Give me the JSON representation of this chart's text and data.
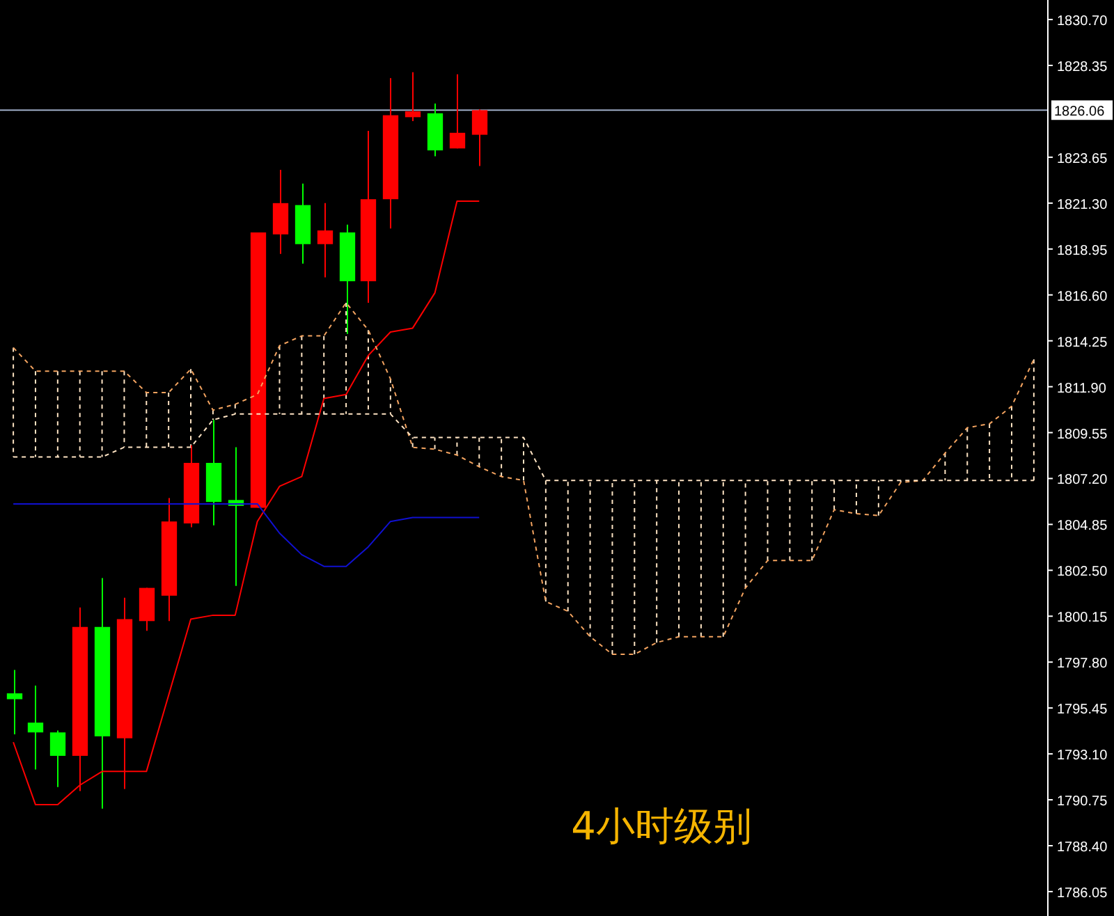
{
  "chart_data": {
    "type": "candlestick",
    "title": "4小时级别",
    "categories": [
      null,
      null,
      null,
      null,
      null,
      null,
      null,
      null,
      null,
      null,
      null,
      null,
      null,
      null,
      null,
      null,
      null,
      null,
      null,
      null,
      null,
      null,
      null,
      null,
      null,
      null,
      null,
      null,
      null,
      null,
      null,
      null,
      null,
      null,
      null,
      null,
      null,
      null,
      null,
      null,
      null,
      null,
      null,
      null,
      null,
      null,
      null
    ],
    "ohlc": [
      [
        1796.2,
        1797.4,
        1794.1,
        1795.9
      ],
      [
        1794.7,
        1796.6,
        1792.3,
        1794.2
      ],
      [
        1794.2,
        1794.3,
        1791.4,
        1793.0
      ],
      [
        1793.0,
        1800.6,
        1791.2,
        1799.6
      ],
      [
        1799.6,
        1802.1,
        1790.3,
        1794.0
      ],
      [
        1793.9,
        1801.1,
        1791.3,
        1800.0
      ],
      [
        1799.9,
        1801.6,
        1799.4,
        1801.6
      ],
      [
        1801.2,
        1806.2,
        1799.9,
        1805.0
      ],
      [
        1804.9,
        1808.9,
        1804.7,
        1808.0
      ],
      [
        1808.0,
        1810.2,
        1804.8,
        1806.0
      ],
      [
        1806.1,
        1808.8,
        1801.7,
        1805.8
      ],
      [
        1805.7,
        1819.8,
        1805.7,
        1819.8
      ],
      [
        1819.7,
        1823.0,
        1818.7,
        1821.3
      ],
      [
        1821.2,
        1822.3,
        1818.2,
        1819.2
      ],
      [
        1819.2,
        1821.3,
        1817.5,
        1819.9
      ],
      [
        1819.8,
        1820.2,
        1814.6,
        1817.3
      ],
      [
        1817.3,
        1825.0,
        1816.2,
        1821.5
      ],
      [
        1821.5,
        1827.7,
        1820.0,
        1825.8
      ],
      [
        1825.7,
        1828.0,
        1825.5,
        1826.0
      ],
      [
        1825.9,
        1826.4,
        1823.7,
        1824.0
      ],
      [
        1824.1,
        1827.9,
        1824.1,
        1824.9
      ],
      [
        1824.8,
        1826.1,
        1823.2,
        1826.06
      ],
      null,
      null,
      null,
      null,
      null,
      null,
      null,
      null,
      null,
      null,
      null,
      null,
      null,
      null,
      null,
      null,
      null,
      null,
      null,
      null,
      null,
      null,
      null,
      null,
      null
    ],
    "colors": [
      "#00ff00",
      "#00ff00",
      "#00ff00",
      "#ff0000",
      "#00ff00",
      "#ff0000",
      "#ff0000",
      "#ff0000",
      "#ff0000",
      "#00ff00",
      "#00ff00",
      "#ff0000",
      "#ff0000",
      "#00ff00",
      "#ff0000",
      "#00ff00",
      "#ff0000",
      "#ff0000",
      "#ff0000",
      "#00ff00",
      "#ff0000",
      "#ff0000",
      null,
      null,
      null,
      null,
      null,
      null,
      null,
      null,
      null,
      null,
      null,
      null,
      null,
      null,
      null,
      null,
      null,
      null,
      null,
      null,
      null,
      null,
      null,
      null,
      null
    ],
    "series": [
      {
        "type": "line",
        "color": "#ff0000",
        "line_style": "solid",
        "values": [
          1793.7,
          1790.5,
          1790.5,
          1791.5,
          1792.2,
          1792.2,
          1792.2,
          1796.1,
          1800.0,
          1800.2,
          1800.2,
          1805.0,
          1806.8,
          1807.3,
          1811.3,
          1811.5,
          1813.5,
          1814.7,
          1814.9,
          1816.7,
          1821.4,
          1821.4,
          null,
          null,
          null,
          null,
          null,
          null,
          null,
          null,
          null,
          null,
          null,
          null,
          null,
          null,
          null,
          null,
          null,
          null,
          null,
          null,
          null,
          null,
          null,
          null,
          null
        ]
      },
      {
        "type": "line",
        "color": "#1010d0",
        "line_style": "solid",
        "values": [
          1805.9,
          1805.9,
          1805.9,
          1805.9,
          1805.9,
          1805.9,
          1805.9,
          1805.9,
          1805.9,
          1805.9,
          1805.9,
          1805.9,
          1804.4,
          1803.3,
          1802.7,
          1802.7,
          1803.7,
          1805.0,
          1805.2,
          1805.2,
          1805.2,
          1805.2,
          null,
          null,
          null,
          null,
          null,
          null,
          null,
          null,
          null,
          null,
          null,
          null,
          null,
          null,
          null,
          null,
          null,
          null,
          null,
          null,
          null,
          null,
          null,
          null,
          null
        ]
      },
      {
        "type": "line",
        "color": "#f4a460",
        "line_style": "dashed",
        "values": [
          1813.9,
          1812.7,
          1812.7,
          1812.7,
          1812.7,
          1812.7,
          1811.6,
          1811.6,
          1812.8,
          1810.7,
          1811.0,
          1811.5,
          1814.0,
          1814.5,
          1814.5,
          1816.2,
          1814.8,
          1812.3,
          1808.8,
          1808.7,
          1808.4,
          1807.8,
          1807.3,
          1807.1,
          1800.9,
          1800.4,
          1799.1,
          1798.2,
          1798.2,
          1798.8,
          1799.1,
          1799.1,
          1799.1,
          1801.6,
          1803.0,
          1803.0,
          1803.0,
          1805.6,
          1805.4,
          1805.3,
          1807.0,
          1807.1,
          1808.5,
          1809.8,
          1810.0,
          1810.9,
          1813.3
        ]
      },
      {
        "type": "line",
        "color": "#ffe4c4",
        "line_style": "dashed",
        "values": [
          1808.3,
          1808.3,
          1808.3,
          1808.3,
          1808.3,
          1808.8,
          1808.8,
          1808.8,
          1808.8,
          1810.2,
          1810.5,
          1810.5,
          1810.5,
          1810.5,
          1810.5,
          1810.5,
          1810.5,
          1810.5,
          1809.3,
          1809.3,
          1809.3,
          1809.3,
          1809.3,
          1809.3,
          1807.1,
          1807.1,
          1807.1,
          1807.1,
          1807.1,
          1807.1,
          1807.1,
          1807.1,
          1807.1,
          1807.1,
          1807.1,
          1807.1,
          1807.1,
          1807.1,
          1807.1,
          1807.1,
          1807.1,
          1807.1,
          1807.1,
          1807.1,
          1807.1,
          1807.1,
          1807.1
        ]
      }
    ],
    "ylim": [
      1784.8,
      1831.7
    ],
    "yticks": [
      1786.05,
      {
        "value": 1788.4,
        "label": "1788.40"
      },
      1790.75,
      {
        "value": 1793.1,
        "label": "1793.10"
      },
      1795.45,
      {
        "value": 1797.8,
        "label": "1797.80"
      },
      1800.15,
      {
        "value": 1802.5,
        "label": "1802.50"
      },
      1804.85,
      {
        "value": 1807.2,
        "label": "1807.20"
      },
      1809.55,
      {
        "value": 1811.9,
        "label": "1811.90"
      },
      1814.25,
      {
        "value": 1816.6,
        "label": "1816.60"
      },
      1818.95,
      {
        "value": 1821.3,
        "label": "1821.30"
      },
      1823.65,
      1828.35,
      {
        "value": 1830.7,
        "label": "1830.70"
      }
    ],
    "ref_lines": [
      {
        "axis": "y",
        "value": 1826.06,
        "label": "1826.06",
        "color": "#a0aec8"
      }
    ],
    "tick_labels": "y",
    "grid": false
  }
}
